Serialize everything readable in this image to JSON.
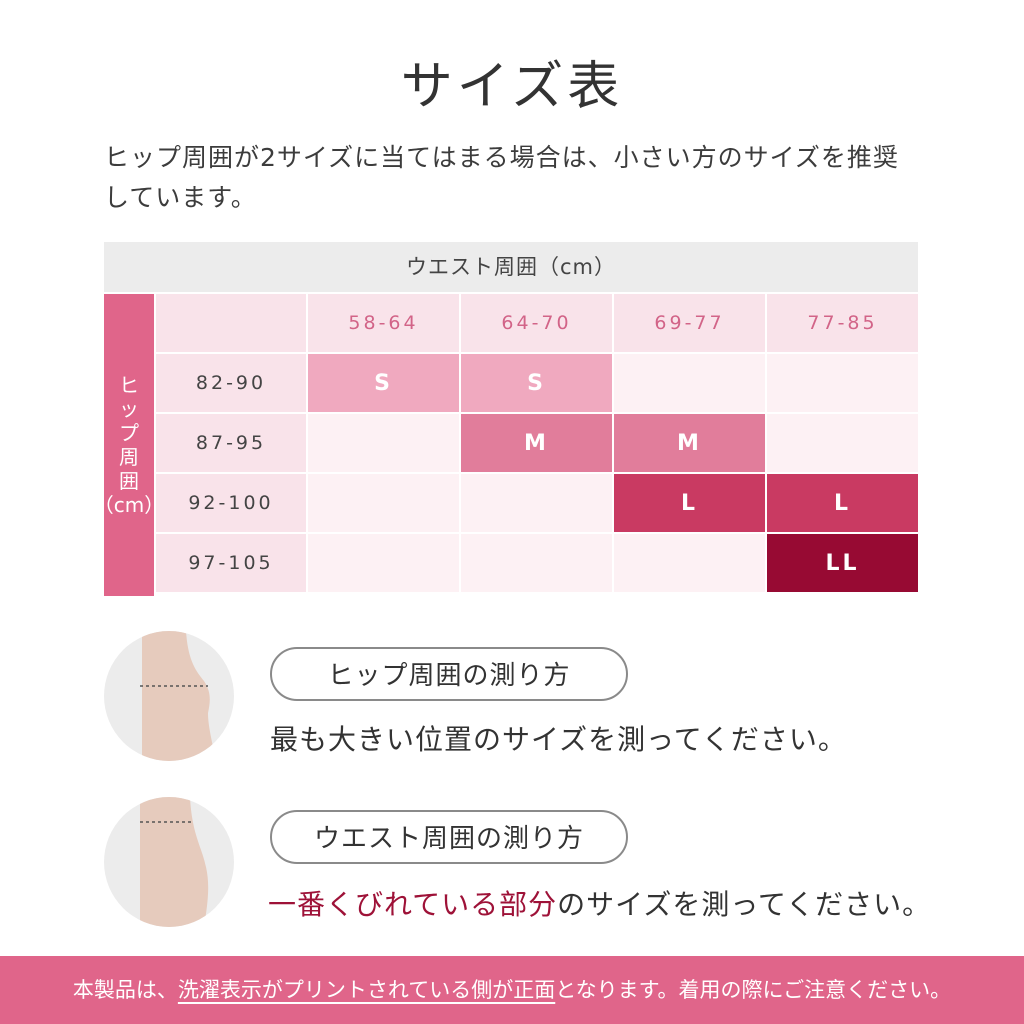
{
  "page": {
    "title": "サイズ表",
    "intro": "ヒップ周囲が2サイズに当てはまる場合は、小さい方のサイズを推奨しています。"
  },
  "size_table": {
    "waist_header": "ウエスト周囲（cm）",
    "hip_header_chars": [
      "ヒ",
      "ッ",
      "プ",
      "周",
      "囲",
      "（cm）"
    ],
    "waist_ranges": [
      "58-64",
      "64-70",
      "69-77",
      "77-85"
    ],
    "hip_ranges": [
      "82-90",
      "87-95",
      "92-100",
      "97-105"
    ],
    "rows": [
      [
        "S",
        "S",
        "",
        ""
      ],
      [
        "",
        "M",
        "M",
        ""
      ],
      [
        "",
        "",
        "L",
        "L"
      ],
      [
        "",
        "",
        "",
        "LL"
      ]
    ],
    "colors": {
      "S": "#f0a9bf",
      "M": "#e17d9b",
      "L": "#c93a62",
      "LL": "#970a33"
    }
  },
  "hip_measure": {
    "label": "ヒップ周囲の測り方",
    "description": "最も大きい位置のサイズを測ってください。"
  },
  "waist_measure": {
    "label": "ウエスト周囲の測り方",
    "description_highlight": "一番くびれている部分",
    "description_rest": "のサイズを測ってください。"
  },
  "footer": {
    "prefix": "本製品は、",
    "underlined": "洗濯表示がプリントされている側が正面",
    "suffix": "となります。着用の際にご注意ください。"
  }
}
